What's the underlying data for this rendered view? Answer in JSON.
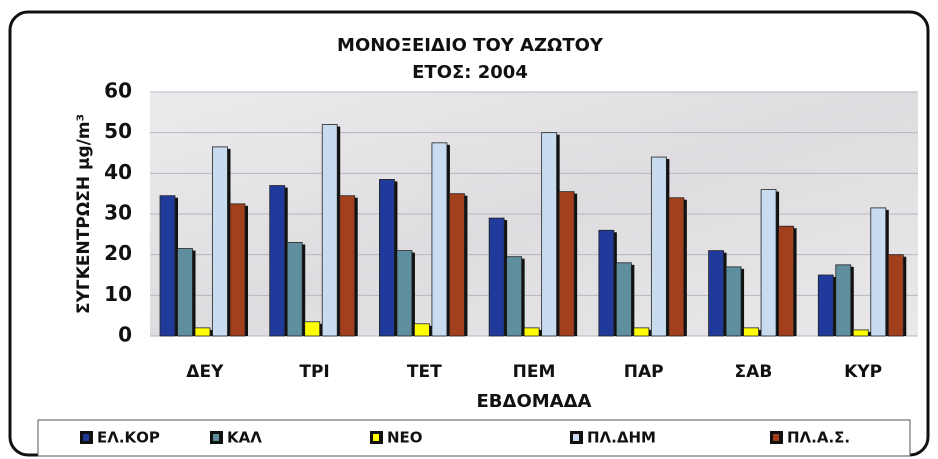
{
  "chart_data": {
    "type": "bar",
    "title": "ΜΟΝΟΞΕΙΔΙΟ ΤΟΥ ΑΖΩΤΟΥ",
    "subtitle": "ΕΤΟΣ: 2004",
    "y_label": "ΣΥΓΚΕΝΤΡΩΣΗ μg/m³",
    "x_label": "ΕΒΔΟΜΑΔΑ",
    "categories": [
      "ΔΕΥ",
      "ΤΡΙ",
      "ΤΕΤ",
      "ΠΕΜ",
      "ΠΑΡ",
      "ΣΑΒ",
      "ΚΥΡ"
    ],
    "series": [
      {
        "name": "ΕΛ.ΚΟΡ",
        "color": "#1f3a9a",
        "values": [
          34.5,
          37,
          38.5,
          29,
          26,
          21,
          15
        ]
      },
      {
        "name": "ΚΑΛ",
        "color": "#5f8e9e",
        "values": [
          21.5,
          23,
          21,
          19.5,
          18,
          17,
          17.5
        ]
      },
      {
        "name": "ΝΕΟ",
        "color": "#ffff00",
        "values": [
          2,
          3.5,
          3,
          2,
          2,
          2,
          1.5
        ]
      },
      {
        "name": "ΠΛ.ΔΗΜ",
        "color": "#c9dcef",
        "values": [
          46.5,
          52,
          47.5,
          50,
          44,
          36,
          31.5
        ]
      },
      {
        "name": "ΠΛ.Α.Σ.",
        "color": "#a23f1c",
        "values": [
          32.5,
          34.5,
          35,
          35.5,
          34,
          27,
          20
        ]
      }
    ],
    "ylim": [
      0,
      60
    ],
    "yticks": [
      0,
      10,
      20,
      30,
      40,
      50,
      60
    ],
    "grid": true
  }
}
